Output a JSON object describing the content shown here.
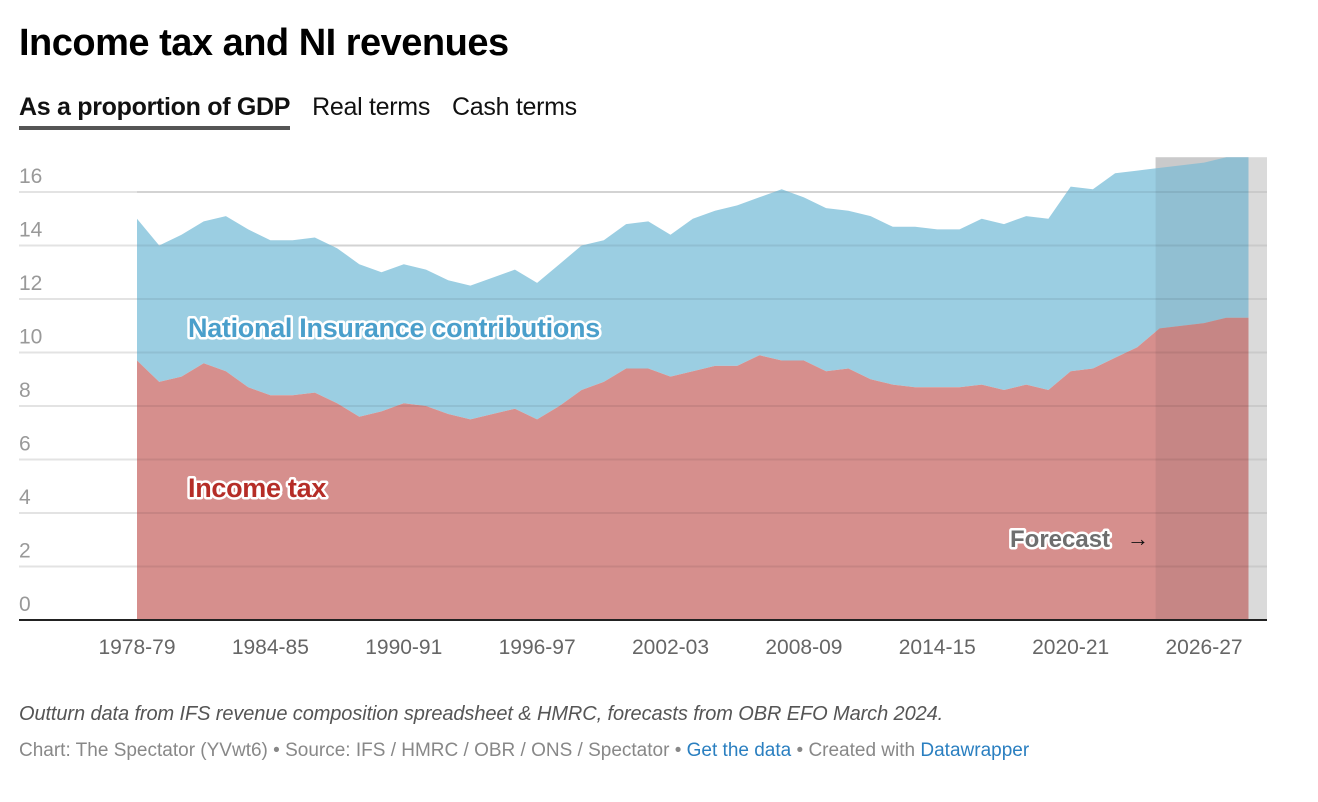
{
  "header": {
    "title": "Income tax and NI revenues"
  },
  "tabs": [
    {
      "label": "As a proportion of GDP",
      "active": true
    },
    {
      "label": "Real terms",
      "active": false
    },
    {
      "label": "Cash terms",
      "active": false
    }
  ],
  "colors": {
    "ni_area": "#9bcee2",
    "ni_label": "#4a9fcb",
    "income_tax_area": "#d68f8d",
    "income_tax_label": "#b52d27",
    "forecast_shade": "#dadada",
    "gridline": "#e3e3e3",
    "link": "#2a7fc0"
  },
  "chart_data": {
    "type": "area",
    "stacked": true,
    "title": "Income tax and NI revenues",
    "subtitle": "As a proportion of GDP",
    "xlabel": "",
    "ylabel": "",
    "ylim": [
      0,
      17.3
    ],
    "yticks": [
      0,
      2,
      4,
      6,
      8,
      10,
      12,
      14,
      16
    ],
    "xtick_labels": [
      "1978-79",
      "1984-85",
      "1990-91",
      "1996-97",
      "2002-03",
      "2008-09",
      "2014-15",
      "2020-21",
      "2026-27"
    ],
    "grid": true,
    "legend": "inline-labels",
    "x": [
      "1978-79",
      "1979-80",
      "1980-81",
      "1981-82",
      "1982-83",
      "1983-84",
      "1984-85",
      "1985-86",
      "1986-87",
      "1987-88",
      "1988-89",
      "1989-90",
      "1990-91",
      "1991-92",
      "1992-93",
      "1993-94",
      "1994-95",
      "1995-96",
      "1996-97",
      "1997-98",
      "1998-99",
      "1999-00",
      "2000-01",
      "2001-02",
      "2002-03",
      "2003-04",
      "2004-05",
      "2005-06",
      "2006-07",
      "2007-08",
      "2008-09",
      "2009-10",
      "2010-11",
      "2011-12",
      "2012-13",
      "2013-14",
      "2014-15",
      "2015-16",
      "2016-17",
      "2017-18",
      "2018-19",
      "2019-20",
      "2020-21",
      "2021-22",
      "2022-23",
      "2023-24",
      "2024-25",
      "2025-26",
      "2026-27",
      "2027-28",
      "2028-29"
    ],
    "series": [
      {
        "name": "Income tax",
        "values": [
          9.7,
          8.9,
          9.1,
          9.6,
          9.3,
          8.7,
          8.4,
          8.4,
          8.5,
          8.1,
          7.6,
          7.8,
          8.1,
          8.0,
          7.7,
          7.5,
          7.7,
          7.9,
          7.5,
          8.0,
          8.6,
          8.9,
          9.4,
          9.4,
          9.1,
          9.3,
          9.5,
          9.5,
          9.9,
          9.7,
          9.7,
          9.3,
          9.4,
          9.0,
          8.8,
          8.7,
          8.7,
          8.7,
          8.8,
          8.6,
          8.8,
          8.6,
          9.3,
          9.4,
          9.8,
          10.2,
          10.9,
          11.0,
          11.1,
          11.3,
          11.3
        ]
      },
      {
        "name": "National Insurance contributions",
        "values": [
          5.3,
          5.1,
          5.3,
          5.3,
          5.8,
          5.9,
          5.8,
          5.8,
          5.8,
          5.8,
          5.7,
          5.2,
          5.2,
          5.1,
          5.0,
          5.0,
          5.1,
          5.2,
          5.1,
          5.3,
          5.4,
          5.3,
          5.4,
          5.5,
          5.3,
          5.7,
          5.8,
          6.0,
          5.9,
          6.4,
          6.1,
          6.1,
          5.9,
          6.1,
          5.9,
          6.0,
          5.9,
          5.9,
          6.2,
          6.2,
          6.3,
          6.4,
          6.9,
          6.7,
          6.9,
          6.6,
          6.0,
          6.0,
          6.0,
          6.0,
          6.0
        ]
      }
    ],
    "annotations": [
      {
        "text": "National Insurance contributions",
        "series": "National Insurance contributions"
      },
      {
        "text": "Income tax",
        "series": "Income tax"
      },
      {
        "text": "Forecast",
        "arrow": "→"
      }
    ],
    "forecast_from": "2024-25"
  },
  "notes": {
    "description": "Outturn data from IFS revenue composition spreadsheet & HMRC, forecasts from OBR EFO March 2024."
  },
  "footer": {
    "chart_credit": "Chart: The Spectator (YVwt6)",
    "separator": " • ",
    "source": "Source: IFS / HMRC / OBR / ONS / Spectator",
    "get_data_label": "Get the data",
    "created_with": "Created with ",
    "datawrapper_label": "Datawrapper"
  }
}
